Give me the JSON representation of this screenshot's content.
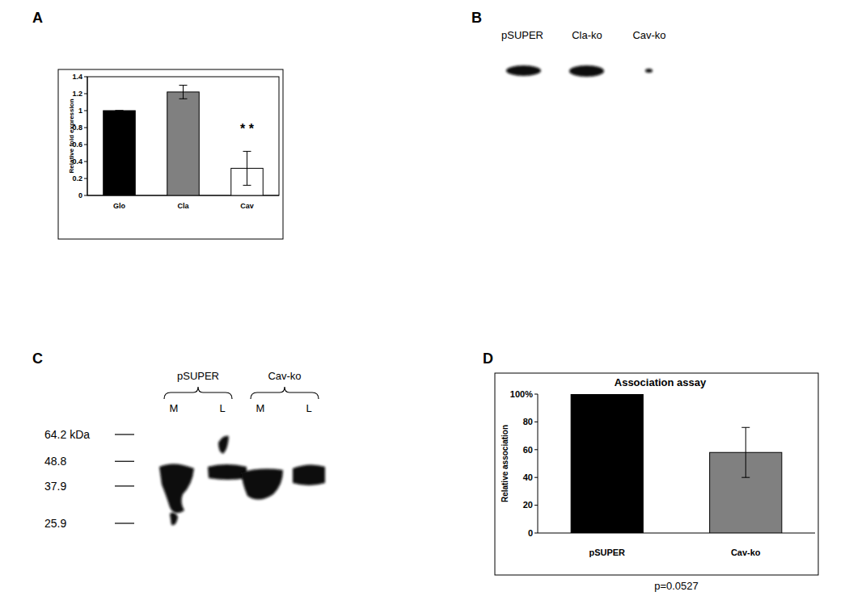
{
  "chart_data": [
    {
      "type": "bar",
      "panel": "A",
      "y_label": "Relative fold expression",
      "categories": [
        "Glo",
        "Cla",
        "Cav"
      ],
      "values": [
        1,
        1.22,
        0.32
      ],
      "errors": [
        0,
        0.08,
        0.2
      ],
      "colors": [
        "#000000",
        "#808080",
        "#ffffff"
      ],
      "ylim": [
        0,
        1.4
      ],
      "yticks": [
        0,
        0.2,
        0.4,
        0.6,
        0.8,
        1,
        1.2,
        1.4
      ],
      "grid": false,
      "annotations": [
        {
          "text": "* *",
          "x": "Cav"
        }
      ]
    },
    {
      "type": "bar",
      "panel": "D",
      "title": "Association assay",
      "y_label": "Relative association",
      "categories": [
        "pSUPER",
        "Cav-ko"
      ],
      "values": [
        100,
        58
      ],
      "errors": [
        0,
        18
      ],
      "colors": [
        "#000000",
        "#808080"
      ],
      "ylim": [
        0,
        100
      ],
      "yticks": [
        0,
        20,
        40,
        60,
        80,
        {
          "value": 100,
          "label": "100%"
        }
      ],
      "grid": false,
      "annotations": [
        {
          "text": "p=0.0527"
        }
      ]
    }
  ],
  "blot_b": {
    "panel": "B",
    "lanes": [
      "pSUPER",
      "Cla-ko",
      "Cav-ko"
    ]
  },
  "blot_c": {
    "panel": "C",
    "groups": [
      "pSUPER",
      "Cav-ko"
    ],
    "lanes": [
      "M",
      "L",
      "M",
      "L"
    ],
    "markers": [
      {
        "value": 64.2,
        "label": "64.2 kDa"
      },
      48.8,
      37.9,
      25.9
    ]
  }
}
